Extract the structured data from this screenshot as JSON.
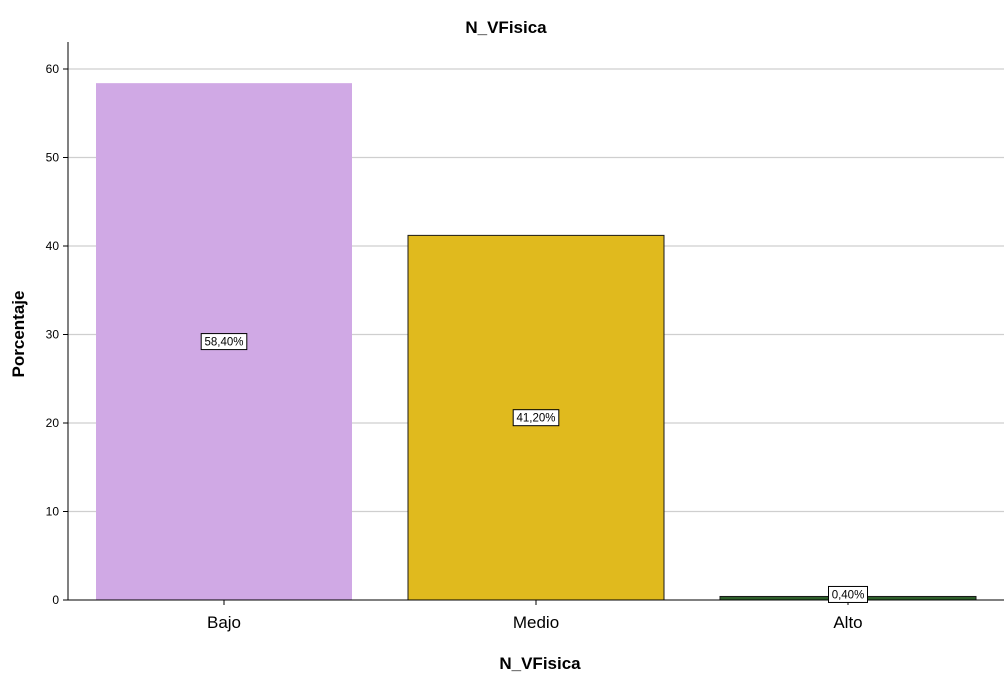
{
  "chart_data": {
    "type": "bar",
    "title": "N_VFisica",
    "xlabel": "N_VFisica",
    "ylabel": "Porcentaje",
    "categories": [
      "Bajo",
      "Medio",
      "Alto"
    ],
    "values": [
      58.4,
      41.2,
      0.4
    ],
    "data_labels": [
      "58,40%",
      "41,20%",
      "0,40%"
    ],
    "colors": [
      "#D0A9E5",
      "#E0BA1E",
      "#2D5F2A"
    ],
    "ylim": [
      0,
      63
    ],
    "yticks": [
      0,
      10,
      20,
      30,
      40,
      50,
      60
    ],
    "grid": true,
    "legend": "none"
  }
}
